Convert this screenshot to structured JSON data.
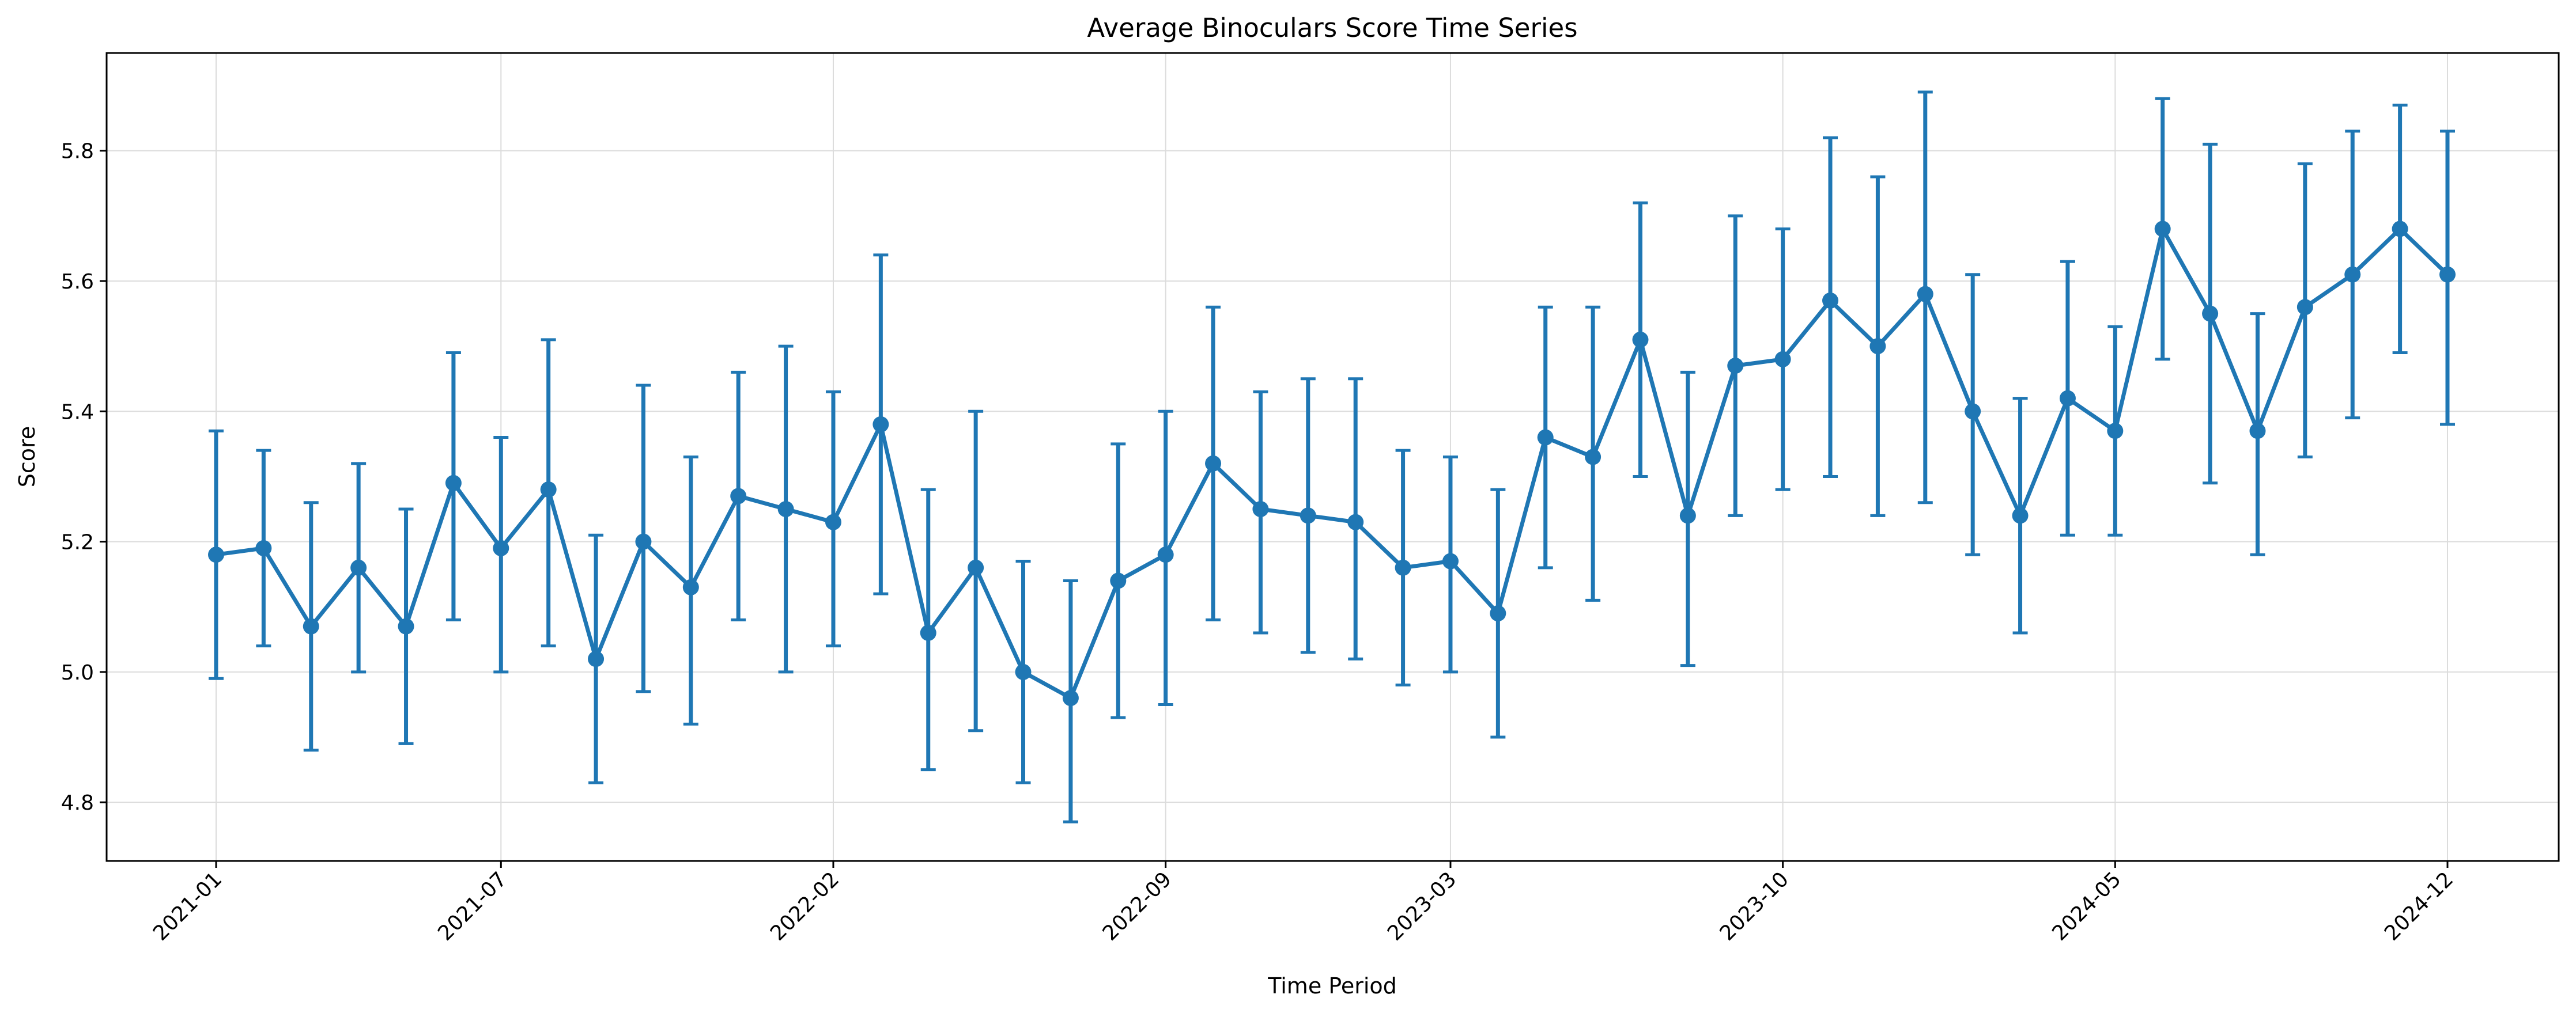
{
  "chart_data": {
    "type": "line",
    "title": "Average Binoculars Score Time Series",
    "xlabel": "Time Period",
    "ylabel": "Score",
    "ylim": [
      4.71,
      5.95
    ],
    "yticks": [
      4.8,
      5.0,
      5.2,
      5.4,
      5.6,
      5.8
    ],
    "ytick_labels": [
      "4.8",
      "5.0",
      "5.2",
      "5.4",
      "5.6",
      "5.8"
    ],
    "xticks": [
      {
        "label": "2021-01",
        "index": 0
      },
      {
        "label": "2021-07",
        "index": 6
      },
      {
        "label": "2022-02",
        "index": 13
      },
      {
        "label": "2022-09",
        "index": 20
      },
      {
        "label": "2023-03",
        "index": 26
      },
      {
        "label": "2023-10",
        "index": 33
      },
      {
        "label": "2024-05",
        "index": 40
      },
      {
        "label": "2024-12",
        "index": 47
      }
    ],
    "grid": true,
    "color": "#1f77b4",
    "series": [
      {
        "x": [
          "2021-01",
          "2021-02",
          "2021-03",
          "2021-04",
          "2021-05",
          "2021-06",
          "2021-07",
          "2021-08",
          "2021-09",
          "2021-10",
          "2021-11",
          "2021-12",
          "2022-01",
          "2022-02",
          "2022-03",
          "2022-04",
          "2022-05",
          "2022-06",
          "2022-07",
          "2022-08",
          "2022-09",
          "2022-10",
          "2022-11",
          "2022-12",
          "2023-01",
          "2023-02",
          "2023-03",
          "2023-04",
          "2023-05",
          "2023-06",
          "2023-07",
          "2023-08",
          "2023-09",
          "2023-10",
          "2023-11",
          "2023-12",
          "2024-01",
          "2024-02",
          "2024-03",
          "2024-04",
          "2024-05",
          "2024-06",
          "2024-07",
          "2024-08",
          "2024-09",
          "2024-10",
          "2024-11",
          "2024-12"
        ],
        "y": [
          5.18,
          5.19,
          5.07,
          5.16,
          5.07,
          5.29,
          5.19,
          5.28,
          5.02,
          5.2,
          5.13,
          5.27,
          5.25,
          5.23,
          5.38,
          5.06,
          5.16,
          5.0,
          4.96,
          5.14,
          5.18,
          5.32,
          5.25,
          5.24,
          5.23,
          5.16,
          5.17,
          5.09,
          5.36,
          5.33,
          5.51,
          5.24,
          5.47,
          5.48,
          5.57,
          5.5,
          5.58,
          5.4,
          5.24,
          5.42,
          5.37,
          5.68,
          5.55,
          5.37,
          5.56,
          5.61,
          5.68,
          5.61
        ],
        "err_low": [
          4.99,
          5.04,
          4.88,
          5.0,
          4.89,
          5.08,
          5.0,
          5.04,
          4.83,
          4.97,
          4.92,
          5.08,
          5.0,
          5.04,
          5.12,
          4.85,
          4.91,
          4.83,
          4.77,
          4.93,
          4.95,
          5.08,
          5.06,
          5.03,
          5.02,
          4.98,
          5.0,
          4.9,
          5.16,
          5.11,
          5.3,
          5.01,
          5.24,
          5.28,
          5.3,
          5.24,
          5.26,
          5.18,
          5.06,
          5.21,
          5.21,
          5.48,
          5.29,
          5.18,
          5.33,
          5.39,
          5.49,
          5.38
        ],
        "err_high": [
          5.37,
          5.34,
          5.26,
          5.32,
          5.25,
          5.49,
          5.36,
          5.51,
          5.21,
          5.44,
          5.33,
          5.46,
          5.5,
          5.43,
          5.64,
          5.28,
          5.4,
          5.17,
          5.14,
          5.35,
          5.4,
          5.56,
          5.43,
          5.45,
          5.45,
          5.34,
          5.33,
          5.28,
          5.56,
          5.56,
          5.72,
          5.46,
          5.7,
          5.68,
          5.82,
          5.76,
          5.89,
          5.61,
          5.42,
          5.63,
          5.53,
          5.88,
          5.81,
          5.55,
          5.78,
          5.83,
          5.87,
          5.83
        ]
      }
    ]
  }
}
